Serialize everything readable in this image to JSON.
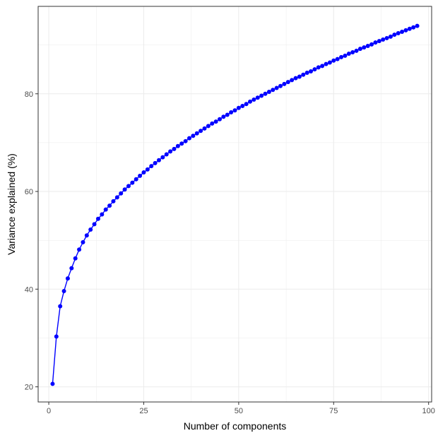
{
  "chart_data": {
    "type": "line",
    "title": "",
    "xlabel": "Number of components",
    "ylabel": "Variance explained (%)",
    "xlim": [
      -2.8,
      100.8
    ],
    "ylim": [
      16.9,
      97.9
    ],
    "x_ticks": [
      0,
      25,
      50,
      75,
      100
    ],
    "x_tick_labels": [
      "0",
      "25",
      "50",
      "75",
      "100"
    ],
    "y_ticks": [
      20,
      40,
      60,
      80
    ],
    "y_tick_labels": [
      "20",
      "40",
      "60",
      "80"
    ],
    "grid": true,
    "legend": "none",
    "series": [
      {
        "color": "#0000ff",
        "marker": "circle",
        "x": [
          1,
          2,
          3,
          4,
          5,
          6,
          7,
          8,
          9,
          10,
          11,
          12,
          13,
          14,
          15,
          16,
          17,
          18,
          19,
          20,
          21,
          22,
          23,
          24,
          25,
          26,
          27,
          28,
          29,
          30,
          31,
          32,
          33,
          34,
          35,
          36,
          37,
          38,
          39,
          40,
          41,
          42,
          43,
          44,
          45,
          46,
          47,
          48,
          49,
          50,
          51,
          52,
          53,
          54,
          55,
          56,
          57,
          58,
          59,
          60,
          61,
          62,
          63,
          64,
          65,
          66,
          67,
          68,
          69,
          70,
          71,
          72,
          73,
          74,
          75,
          76,
          77,
          78,
          79,
          80,
          81,
          82,
          83,
          84,
          85,
          86,
          87,
          88,
          89,
          90,
          91,
          92,
          93,
          94,
          95,
          96,
          97
        ],
        "values": [
          20.6,
          30.3,
          36.5,
          39.6,
          42.2,
          44.3,
          46.3,
          48.1,
          49.6,
          51.0,
          52.2,
          53.3,
          54.4,
          55.3,
          56.3,
          57.1,
          58.0,
          58.8,
          59.6,
          60.4,
          61.1,
          61.8,
          62.5,
          63.2,
          63.9,
          64.5,
          65.2,
          65.8,
          66.4,
          67.0,
          67.6,
          68.2,
          68.7,
          69.3,
          69.8,
          70.3,
          70.9,
          71.4,
          71.9,
          72.4,
          72.9,
          73.4,
          73.9,
          74.3,
          74.8,
          75.3,
          75.7,
          76.2,
          76.6,
          77.1,
          77.5,
          77.9,
          78.4,
          78.8,
          79.2,
          79.6,
          80.0,
          80.4,
          80.8,
          81.2,
          81.6,
          82.0,
          82.4,
          82.8,
          83.2,
          83.5,
          83.9,
          84.3,
          84.6,
          85.0,
          85.4,
          85.7,
          86.1,
          86.4,
          86.8,
          87.1,
          87.5,
          87.8,
          88.2,
          88.5,
          88.8,
          89.2,
          89.5,
          89.8,
          90.1,
          90.5,
          90.8,
          91.1,
          91.4,
          91.7,
          92.1,
          92.4,
          92.7,
          93.0,
          93.3,
          93.6,
          93.9
        ]
      }
    ]
  }
}
